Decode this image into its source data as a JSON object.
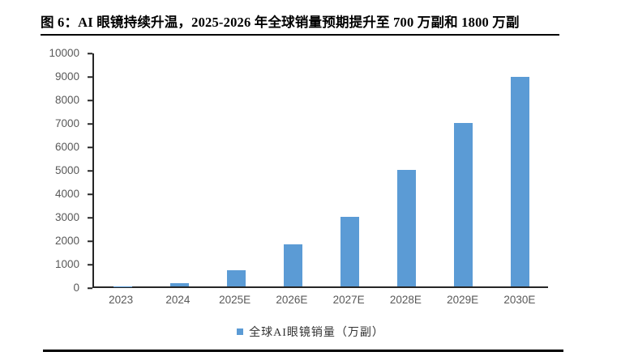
{
  "figure": {
    "title": "图 6：AI 眼镜持续升温，2025-2026 年全球销量预期提升至 700 万副和 1800 万副"
  },
  "chart_data": {
    "type": "bar",
    "title": "图 6：AI 眼镜持续升温，2025-2026 年全球销量预期提升至 700 万副和 1800 万副",
    "categories": [
      "2023",
      "2024",
      "2025E",
      "2026E",
      "2027E",
      "2028E",
      "2029E",
      "2030E"
    ],
    "values": [
      10,
      150,
      700,
      1800,
      3000,
      5000,
      7000,
      9000
    ],
    "series": [
      {
        "name": "全球AI眼镜销量（万副）",
        "values": [
          10,
          150,
          700,
          1800,
          3000,
          5000,
          7000,
          9000
        ]
      }
    ],
    "legend": "全球AI眼镜销量（万副）",
    "legend_position": "bottom-center",
    "xlabel": "",
    "ylabel": "",
    "ylim": [
      0,
      10000
    ],
    "yticks": [
      0,
      1000,
      2000,
      3000,
      4000,
      5000,
      6000,
      7000,
      8000,
      9000,
      10000
    ],
    "grid": false
  },
  "colors": {
    "bar": "#5B9BD5",
    "axis": "#262626",
    "tick_label": "#595959",
    "title_text": "#000000",
    "rule": "#000000"
  }
}
